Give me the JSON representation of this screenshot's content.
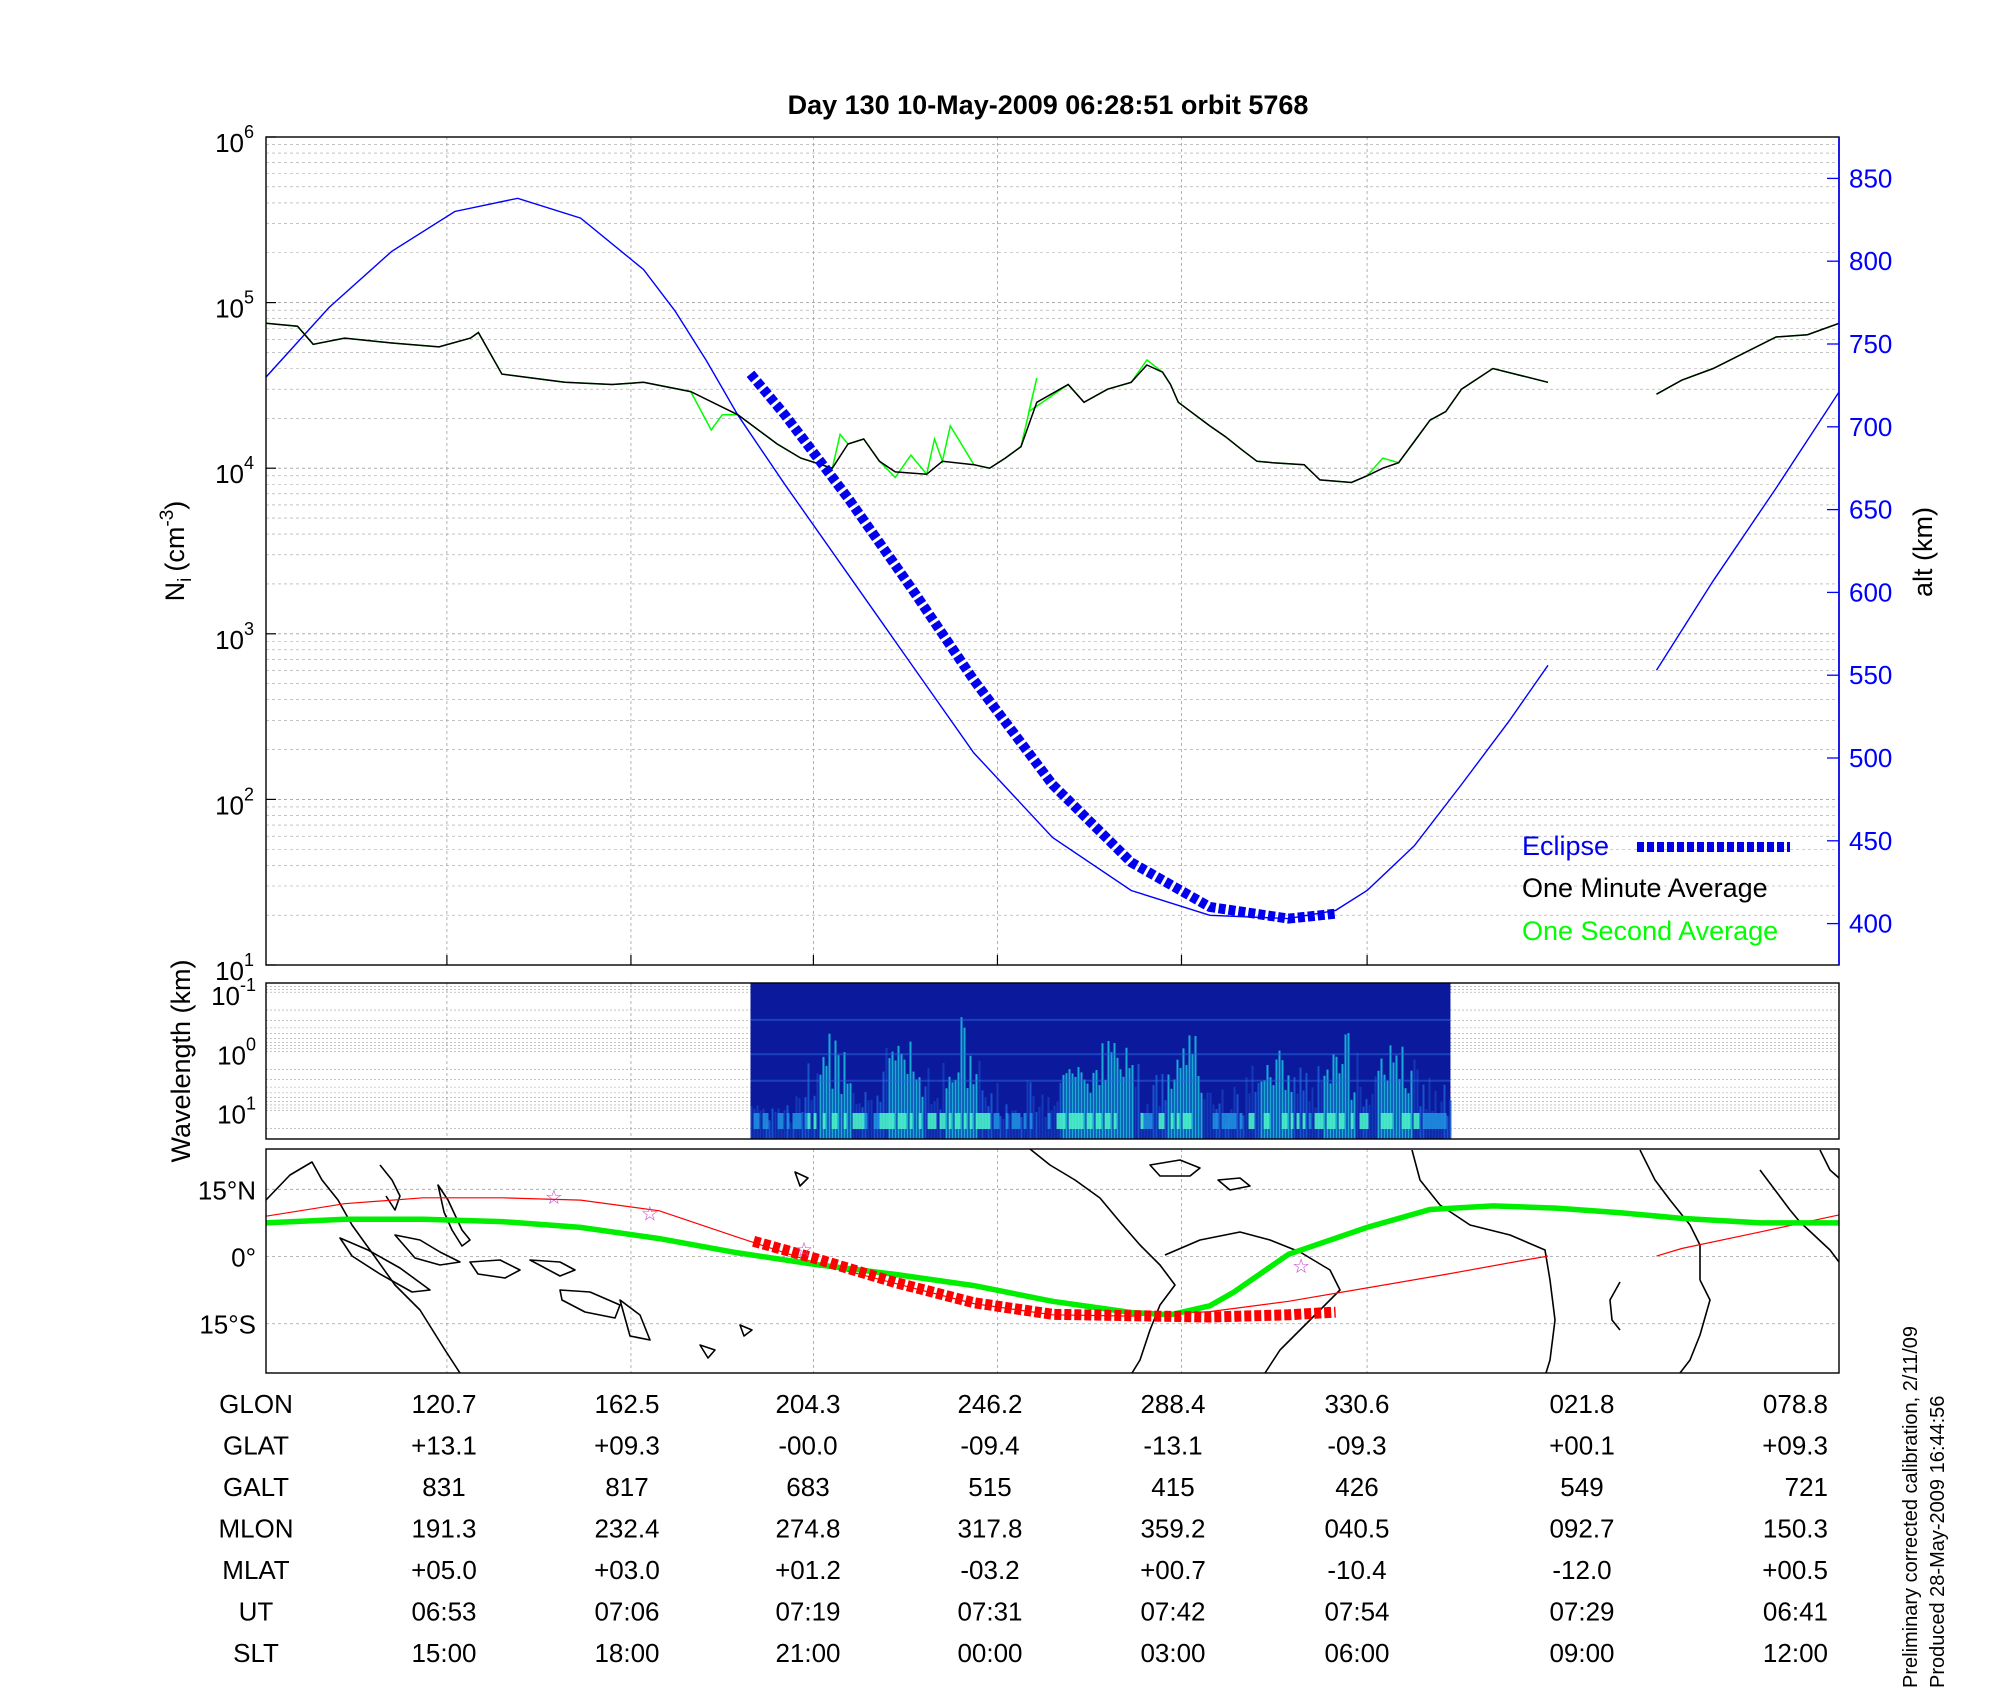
{
  "title": "Day 130  10-May-2009 06:28:51   orbit 5768",
  "colors": {
    "altitude": "#0000ff",
    "eclipse": "#0000ee",
    "one_minute": "#000000",
    "one_second": "#00ff00",
    "ground_track": "#ff0000",
    "magnetic_equator": "#00ee00",
    "coast": "#000000",
    "grid": "#a0a0a0",
    "stars": "#cc44cc"
  },
  "chart_data": [
    {
      "type": "line",
      "panel": "ion-density",
      "ylabel_main": "N",
      "ylabel_sub": "i",
      "ylabel_unit": "(cm",
      "ylabel_exp": "-3",
      "ylabel_close": ")",
      "yscale": "log",
      "ylim": [
        10,
        1000000
      ],
      "yticks": [
        {
          "base": "10",
          "exp": "1"
        },
        {
          "base": "10",
          "exp": "2"
        },
        {
          "base": "10",
          "exp": "3"
        },
        {
          "base": "10",
          "exp": "4"
        },
        {
          "base": "10",
          "exp": "5"
        },
        {
          "base": "10",
          "exp": "6"
        }
      ],
      "y2label": "alt (km)",
      "y2lim": [
        375,
        875
      ],
      "y2ticks": [
        "400",
        "450",
        "500",
        "550",
        "600",
        "650",
        "700",
        "750",
        "800",
        "850"
      ],
      "xlim": [
        0,
        1
      ],
      "grid": true,
      "legend_position": "bottom-right",
      "legend": [
        {
          "name": "Eclipse",
          "key": "eclipse"
        },
        {
          "name": "One Minute Average",
          "key": "one_minute"
        },
        {
          "name": "One Second Average",
          "key": "one_second"
        }
      ],
      "series": [
        {
          "key": "altitude",
          "axis": "right",
          "segments": [
            {
              "x": [
                0,
                0.04,
                0.08,
                0.12,
                0.16,
                0.2,
                0.24,
                0.26,
                0.28,
                0.3,
                0.33,
                0.37,
                0.41,
                0.45,
                0.5,
                0.55,
                0.6,
                0.65,
                0.68,
                0.7,
                0.73,
                0.76,
                0.79,
                0.815
              ],
              "y": [
                730,
                772,
                806,
                830,
                838,
                826,
                795,
                770,
                740,
                707,
                665,
                611,
                557,
                503,
                452,
                420,
                405,
                403,
                408,
                420,
                447,
                484,
                522,
                556
              ]
            },
            {
              "x": [
                0.884,
                0.92,
                0.96,
                1.0
              ],
              "y": [
                553,
                607,
                663,
                721
              ]
            }
          ]
        },
        {
          "key": "eclipse",
          "axis": "right",
          "x": [
            0.308,
            0.33,
            0.37,
            0.41,
            0.45,
            0.5,
            0.55,
            0.6,
            0.65,
            0.68
          ],
          "y": [
            732,
            707,
            657,
            603,
            547,
            484,
            437,
            410,
            403,
            406
          ]
        },
        {
          "key": "one_minute",
          "axis": "left",
          "segments": [
            {
              "x": [
                0,
                0.02,
                0.03,
                0.05,
                0.08,
                0.11,
                0.13,
                0.135,
                0.15,
                0.19,
                0.22,
                0.24,
                0.27,
                0.3,
                0.325,
                0.34,
                0.36,
                0.37,
                0.38,
                0.39,
                0.4,
                0.42,
                0.43,
                0.45,
                0.46,
                0.47,
                0.48,
                0.49,
                0.51,
                0.52,
                0.535,
                0.55,
                0.56,
                0.57,
                0.575,
                0.58,
                0.6,
                0.61,
                0.62,
                0.63,
                0.64,
                0.66,
                0.67,
                0.69,
                0.7,
                0.71,
                0.72,
                0.73,
                0.74,
                0.75,
                0.76,
                0.78,
                0.815
              ],
              "y": [
                75000,
                72000,
                56000,
                61000,
                57000,
                54000,
                61000,
                66000,
                37000,
                33000,
                32000,
                33000,
                29000,
                21000,
                14000,
                11500,
                10000,
                14000,
                15000,
                11000,
                9500,
                9200,
                11000,
                10500,
                10000,
                11500,
                13500,
                25000,
                32000,
                25000,
                30000,
                33000,
                42000,
                38000,
                32000,
                25000,
                18000,
                15500,
                13000,
                11000,
                10800,
                10500,
                8500,
                8200,
                9000,
                10000,
                10800,
                14500,
                19500,
                22000,
                30000,
                40000,
                33000
              ]
            },
            {
              "x": [
                0.884,
                0.9,
                0.92,
                0.96,
                0.98,
                1.0
              ],
              "y": [
                28000,
                34000,
                40000,
                62000,
                64000,
                75000
              ]
            }
          ]
        },
        {
          "key": "one_second",
          "axis": "left",
          "segments": [
            {
              "x": [
                0,
                0.02,
                0.03,
                0.05,
                0.08,
                0.11,
                0.13,
                0.135,
                0.15,
                0.19,
                0.22,
                0.24,
                0.27,
                0.283,
                0.29,
                0.3,
                0.325,
                0.34,
                0.36,
                0.365,
                0.37,
                0.38,
                0.39,
                0.4,
                0.41,
                0.42,
                0.425,
                0.43,
                0.435,
                0.45,
                0.46,
                0.47,
                0.48,
                0.49,
                0.485,
                0.51,
                0.52,
                0.535,
                0.55,
                0.56,
                0.57,
                0.575,
                0.58,
                0.6,
                0.61,
                0.62,
                0.63,
                0.64,
                0.66,
                0.67,
                0.69,
                0.7,
                0.71,
                0.72,
                0.73,
                0.74,
                0.75,
                0.76,
                0.78,
                0.815
              ],
              "y": [
                75000,
                72000,
                56000,
                61000,
                57000,
                54000,
                61000,
                66000,
                37000,
                33000,
                32000,
                33000,
                29000,
                17000,
                21000,
                21000,
                14000,
                11500,
                10000,
                16000,
                14000,
                15000,
                11000,
                8800,
                12000,
                9200,
                15000,
                11000,
                18000,
                10500,
                10000,
                11500,
                13500,
                35000,
                22000,
                32000,
                25000,
                30000,
                33000,
                45000,
                38000,
                32000,
                25000,
                18000,
                15500,
                13000,
                11000,
                10800,
                10500,
                8500,
                8200,
                9000,
                11500,
                10800,
                14500,
                19500,
                22000,
                30000,
                40000,
                33000
              ]
            },
            {
              "x": [
                0.884,
                0.9,
                0.92,
                0.96,
                0.98,
                1.0
              ],
              "y": [
                28000,
                34000,
                40000,
                62000,
                64000,
                75000
              ]
            }
          ]
        }
      ]
    },
    {
      "type": "heatmap",
      "panel": "wavelength-spectrogram",
      "ylabel": "Wavelength (km)",
      "yscale": "log",
      "ylim": [
        0.07,
        30
      ],
      "yticks": [
        {
          "base": "10",
          "exp": "-1"
        },
        {
          "base": "10",
          "exp": "0"
        },
        {
          "base": "10",
          "exp": "1"
        }
      ],
      "x_data_range": [
        0.308,
        0.753
      ],
      "colormap": "jet"
    },
    {
      "type": "line",
      "panel": "ground-track-map",
      "yticks": [
        "15°N",
        "0°",
        "15°S"
      ],
      "ylim": [
        -26,
        24
      ],
      "series": [
        {
          "key": "ground_track",
          "segments": [
            {
              "x": [
                0,
                0.05,
                0.1,
                0.15,
                0.2,
                0.25,
                0.3,
                0.35,
                0.4,
                0.45,
                0.5,
                0.55,
                0.6,
                0.65,
                0.7,
                0.75,
                0.8,
                0.815
              ],
              "y": [
                9,
                11.8,
                13.1,
                13.1,
                12.6,
                10.2,
                4.3,
                -1.5,
                -6.0,
                -10.5,
                -13.0,
                -13.3,
                -12.3,
                -10.0,
                -7.0,
                -4.0,
                -0.8,
                0.1
              ]
            },
            {
              "x": [
                0.884,
                0.9,
                0.95,
                1.0
              ],
              "y": [
                0.1,
                1.8,
                5.5,
                9.3
              ]
            }
          ]
        },
        {
          "key": "magnetic_equator",
          "x": [
            0,
            0.05,
            0.1,
            0.15,
            0.2,
            0.25,
            0.3,
            0.35,
            0.4,
            0.45,
            0.5,
            0.55,
            0.575,
            0.6,
            0.615,
            0.65,
            0.7,
            0.74,
            0.78,
            0.82,
            0.86,
            0.9,
            0.95,
            1.0
          ],
          "y": [
            7.5,
            8.3,
            8.3,
            7.8,
            6.5,
            4.0,
            0.8,
            -1.8,
            -4.0,
            -6.5,
            -10.0,
            -12.5,
            -13.0,
            -11.0,
            -8.0,
            0.5,
            6.5,
            10.5,
            11.3,
            10.8,
            9.8,
            8.5,
            7.5,
            7.5
          ]
        },
        {
          "key": "eclipse_track",
          "x": [
            0.31,
            0.35,
            0.4,
            0.45,
            0.5,
            0.55,
            0.6,
            0.65,
            0.68
          ],
          "y": [
            3.4,
            -0.5,
            -5.8,
            -10.3,
            -12.9,
            -13.2,
            -13.5,
            -13.0,
            -12.4
          ]
        }
      ],
      "stars": {
        "x": [
          0.183,
          0.244,
          0.342,
          0.658
        ],
        "y": [
          13.5,
          9.8,
          1.8,
          -1.9
        ]
      }
    }
  ],
  "table": {
    "rows": [
      {
        "label": "GLON",
        "values": [
          "120.7",
          "162.5",
          "204.3",
          "246.2",
          "288.4",
          "330.6",
          "021.8",
          "078.8"
        ]
      },
      {
        "label": "GLAT",
        "values": [
          "+13.1",
          "+09.3",
          "-00.0",
          "-09.4",
          "-13.1",
          "-09.3",
          "+00.1",
          "+09.3"
        ]
      },
      {
        "label": "GALT",
        "values": [
          "831",
          "817",
          "683",
          "515",
          "415",
          "426",
          "549",
          "721"
        ]
      },
      {
        "label": "MLON",
        "values": [
          "191.3",
          "232.4",
          "274.8",
          "317.8",
          "359.2",
          "040.5",
          "092.7",
          "150.3"
        ]
      },
      {
        "label": "MLAT",
        "values": [
          "+05.0",
          "+03.0",
          "+01.2",
          "-03.2",
          "+00.7",
          "-10.4",
          "-12.0",
          "+00.5"
        ]
      },
      {
        "label": "UT",
        "values": [
          "06:53",
          "07:06",
          "07:19",
          "07:31",
          "07:42",
          "07:54",
          "07:29",
          "06:41"
        ]
      },
      {
        "label": "SLT",
        "values": [
          "15:00",
          "18:00",
          "21:00",
          "00:00",
          "03:00",
          "06:00",
          "09:00",
          "12:00"
        ]
      }
    ]
  },
  "side_note": [
    "Preliminary corrected calibration, 2/11/09",
    "Produced 28-May-2009 16:44:56"
  ]
}
